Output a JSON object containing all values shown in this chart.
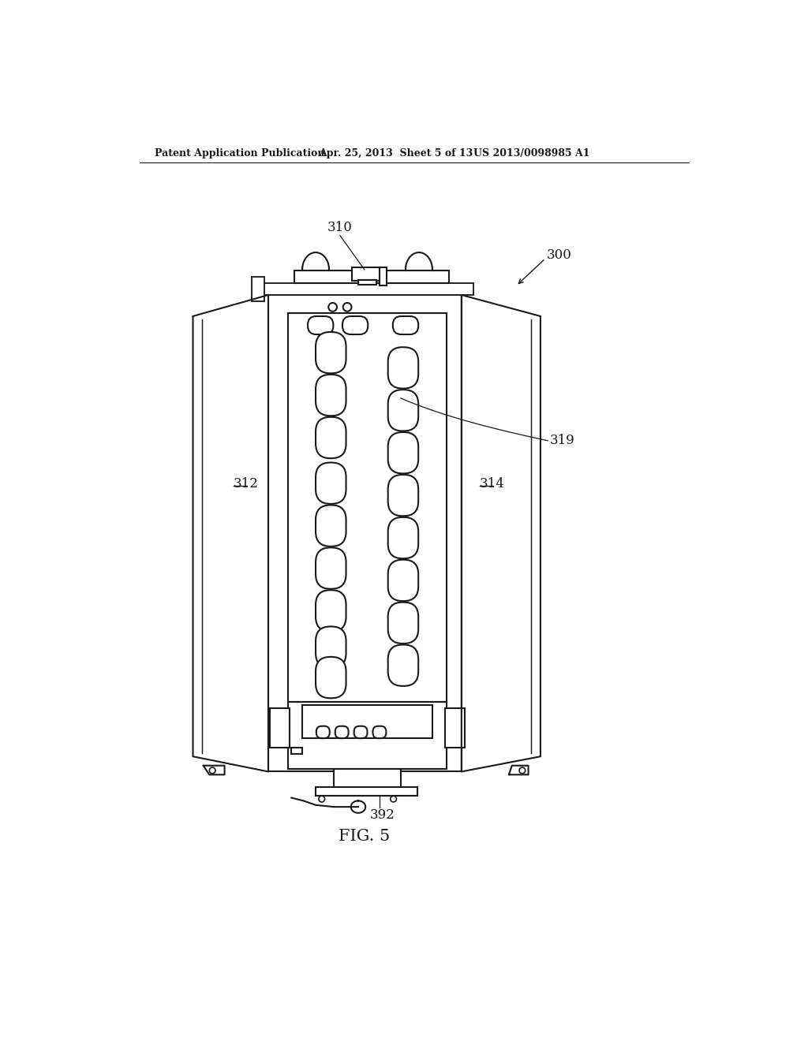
{
  "bg_color": "#ffffff",
  "line_color": "#1a1a1a",
  "lw": 1.5,
  "header_left": "Patent Application Publication",
  "header_center": "Apr. 25, 2013  Sheet 5 of 13",
  "header_right": "US 2013/0098985 A1",
  "fig_label": "FIG. 5"
}
